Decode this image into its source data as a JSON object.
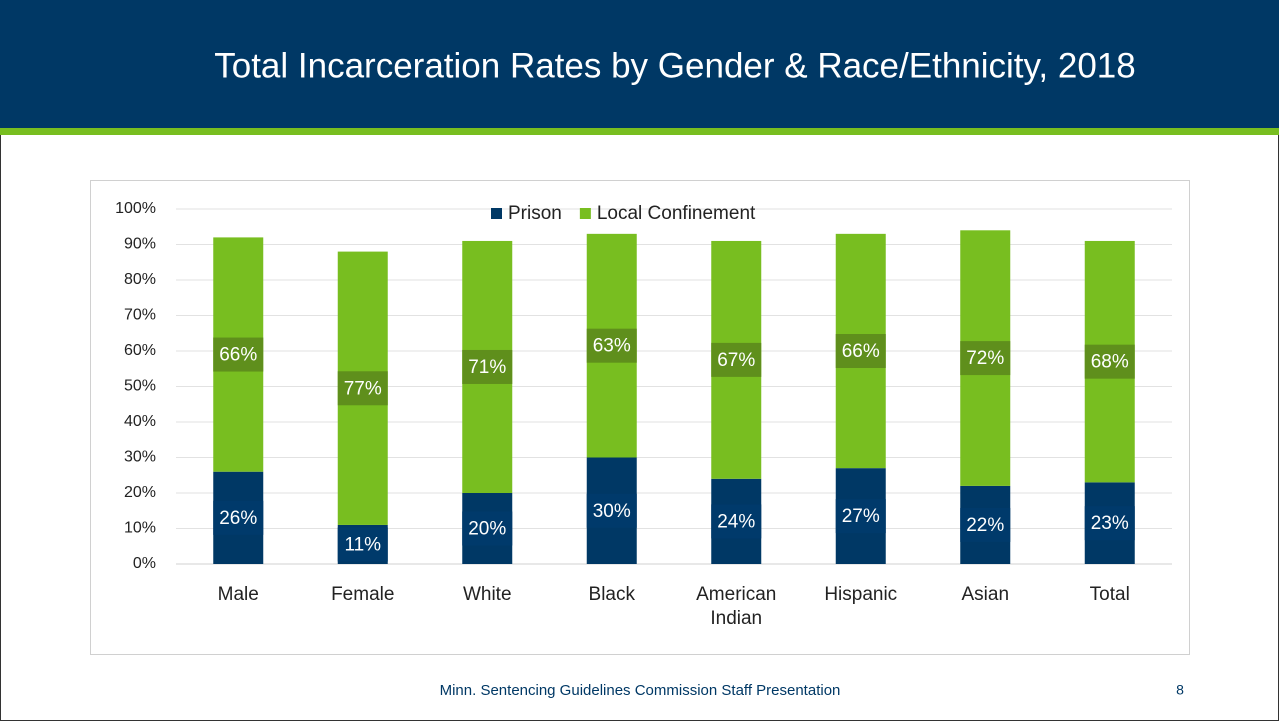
{
  "chart_data": {
    "type": "stacked_bar",
    "title": "Total Incarceration Rates by Gender & Race/Ethnicity, 2018",
    "categories": [
      "Male",
      "Female",
      "White",
      "Black",
      "American Indian",
      "Hispanic",
      "Asian",
      "Total"
    ],
    "series": [
      {
        "name": "Prison",
        "color": "#003865",
        "label_color": "#003a6b",
        "values": [
          26,
          11,
          20,
          30,
          24,
          27,
          22,
          23
        ],
        "value_labels": [
          "26%",
          "11%",
          "20%",
          "30%",
          "24%",
          "27%",
          "22%",
          "23%"
        ]
      },
      {
        "name": "Local Confinement",
        "color": "#78be20",
        "label_color": "#5f8f1c",
        "values": [
          66,
          77,
          71,
          63,
          67,
          66,
          72,
          68
        ],
        "value_labels": [
          "66%",
          "77%",
          "71%",
          "63%",
          "67%",
          "66%",
          "72%",
          "68%"
        ]
      }
    ],
    "ylim": [
      0,
      100
    ],
    "yticks": [
      {
        "value": 0,
        "label": "0%"
      },
      {
        "value": 10,
        "label": "10%"
      },
      {
        "value": 20,
        "label": "20%"
      },
      {
        "value": 30,
        "label": "30%"
      },
      {
        "value": 40,
        "label": "40%"
      },
      {
        "value": 50,
        "label": "50%"
      },
      {
        "value": 60,
        "label": "60%"
      },
      {
        "value": 70,
        "label": "70%"
      },
      {
        "value": 80,
        "label": "80%"
      },
      {
        "value": 90,
        "label": "90%"
      },
      {
        "value": 100,
        "label": "100%"
      }
    ],
    "grid": true,
    "legend": "top"
  },
  "footer": "Minn. Sentencing Guidelines Commission Staff Presentation",
  "page_number": "8"
}
